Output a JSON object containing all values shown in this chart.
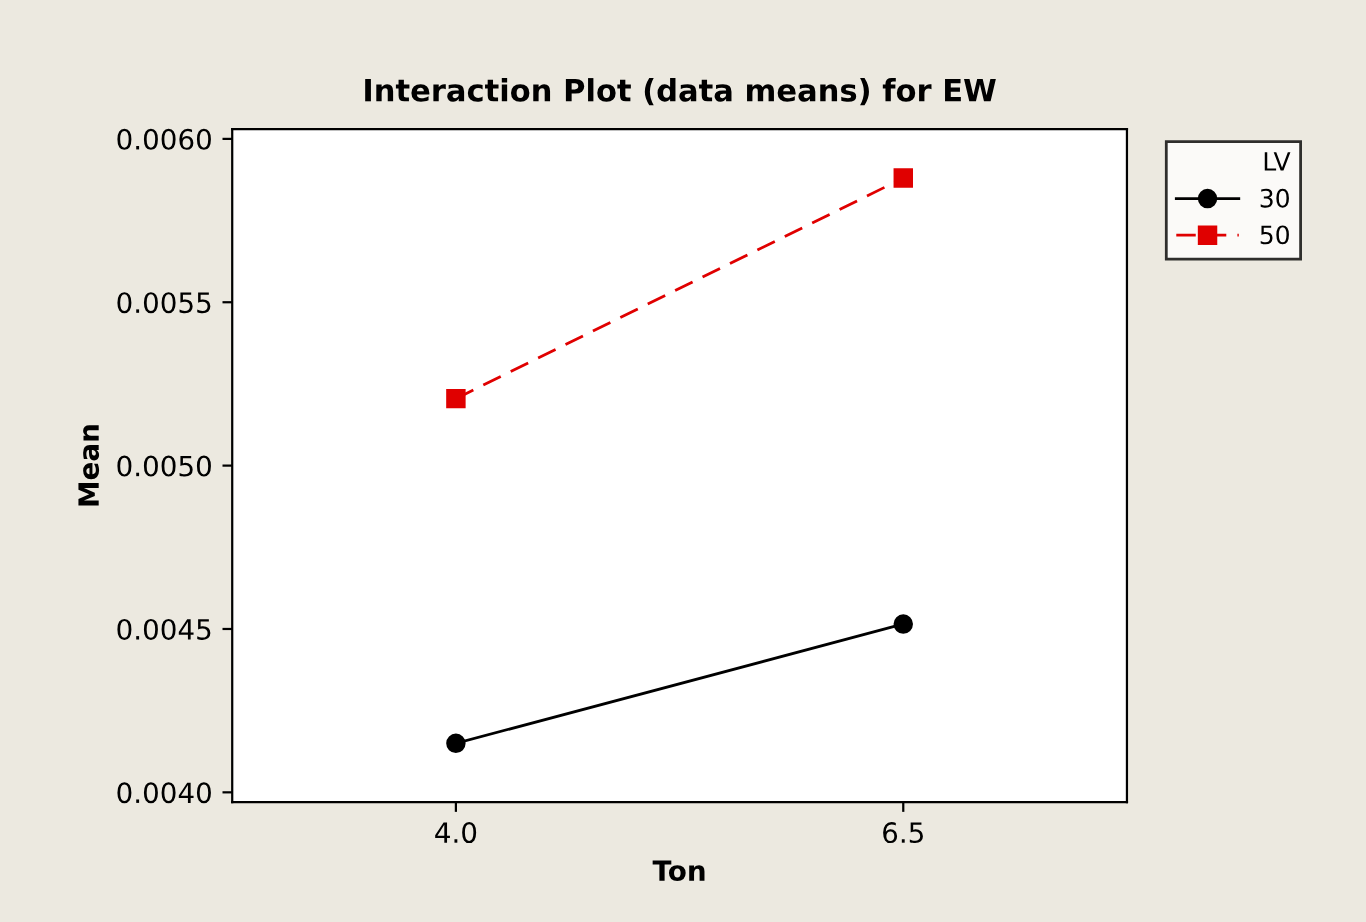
{
  "chart_data": {
    "type": "line",
    "title": "Interaction Plot (data means) for EW",
    "xlabel": "Ton",
    "ylabel": "Mean",
    "legend_title": "LV",
    "x": [
      4.0,
      6.5
    ],
    "series": [
      {
        "name": "30",
        "color": "#000000",
        "values": [
          0.00415,
          0.004515
        ],
        "marker": "circle",
        "line_style": "solid"
      },
      {
        "name": "50",
        "color": "#e00000",
        "values": [
          0.005205,
          0.00588
        ],
        "marker": "square",
        "line_style": "dashed"
      }
    ],
    "xlim": [
      2.75,
      7.75
    ],
    "xticks": [
      {
        "value": 4.0,
        "label": "4.0"
      },
      {
        "value": 6.5,
        "label": "6.5"
      }
    ],
    "ylim": [
      0.00397,
      0.00603
    ],
    "yticks": [
      {
        "value": 0.004,
        "label": "0.0040"
      },
      {
        "value": 0.0045,
        "label": "0.0045"
      },
      {
        "value": 0.005,
        "label": "0.0050"
      },
      {
        "value": 0.0055,
        "label": "0.0055"
      },
      {
        "value": 0.006,
        "label": "0.0060"
      }
    ],
    "grid": false,
    "legend": "top right"
  }
}
